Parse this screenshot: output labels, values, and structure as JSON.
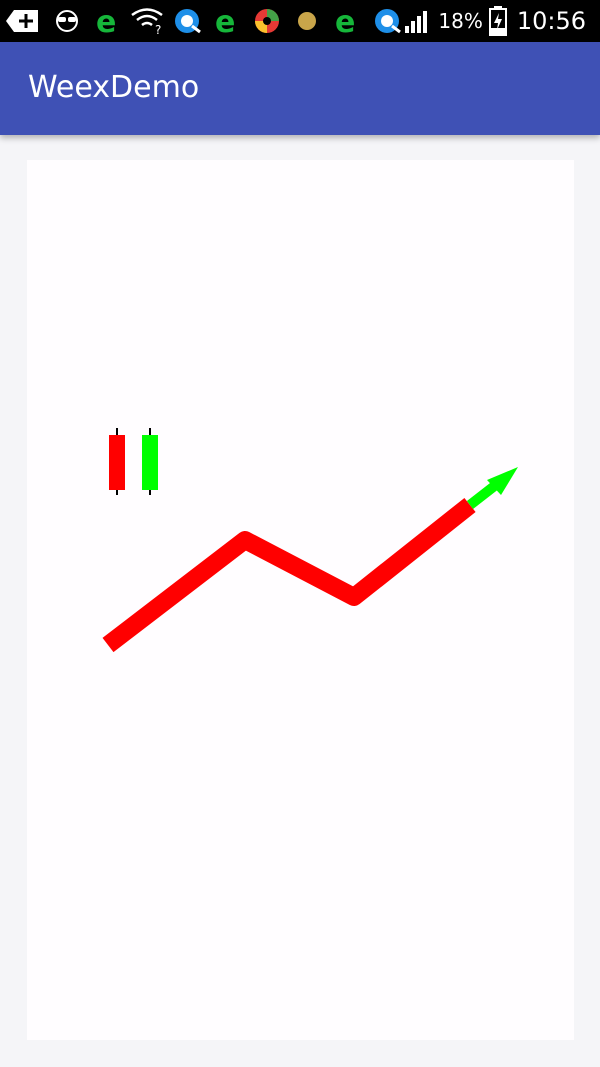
{
  "status_bar": {
    "battery_percent": "18%",
    "time": "10:56",
    "icons": [
      "add-icon",
      "incognito-icon",
      "ie-browser-icon",
      "wifi-question-icon",
      "qq-browser-icon",
      "ie-browser-icon",
      "security-app-icon",
      "dot-icon",
      "ie-browser-icon",
      "qq-browser-icon",
      "signal-icon",
      "battery-charging-icon"
    ]
  },
  "app_bar": {
    "title": "WeexDemo"
  },
  "colors": {
    "app_bar": "#3f51b5",
    "candle_red": "#ff0000",
    "candle_green": "#00ff00",
    "line_red": "#ff0000",
    "arrow_green": "#00ff00"
  },
  "canvas": {
    "candles": [
      {
        "color": "red"
      },
      {
        "color": "green"
      }
    ],
    "polyline": {
      "color": "red"
    },
    "arrow": {
      "color": "green"
    }
  }
}
